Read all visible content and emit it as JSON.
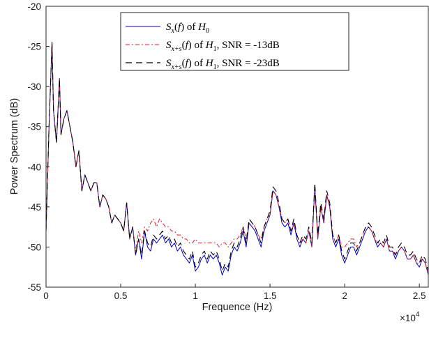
{
  "chart_data": {
    "type": "line",
    "xlabel": "Frequence (Hz)",
    "ylabel": "Power Spectrum (dB)",
    "x_exponent_label": "×10",
    "x_exponent_power": "4",
    "xlim": [
      0,
      2.56
    ],
    "ylim": [
      -55,
      -20
    ],
    "xticks": [
      0,
      0.5,
      1,
      1.5,
      2,
      2.5
    ],
    "xtick_labels": [
      "0",
      "0.5",
      "1",
      "1.5",
      "2",
      "2.5"
    ],
    "yticks": [
      -55,
      -50,
      -45,
      -40,
      -35,
      -30,
      -25,
      -20
    ],
    "ytick_labels": [
      "-55",
      "-50",
      "-45",
      "-40",
      "-35",
      "-30",
      "-25",
      "-20"
    ],
    "grid": false,
    "legend_position": "top-center",
    "series": [
      {
        "name": "S_x(f) of H_0",
        "legend_label": "Sx(f) of H0",
        "color": "#0000cc",
        "style": "solid",
        "x": [
          0,
          0.02,
          0.04,
          0.05,
          0.07,
          0.09,
          0.1,
          0.12,
          0.14,
          0.16,
          0.18,
          0.2,
          0.22,
          0.24,
          0.26,
          0.28,
          0.3,
          0.32,
          0.34,
          0.36,
          0.38,
          0.4,
          0.42,
          0.44,
          0.46,
          0.48,
          0.5,
          0.52,
          0.54,
          0.56,
          0.58,
          0.6,
          0.62,
          0.64,
          0.66,
          0.68,
          0.7,
          0.72,
          0.74,
          0.76,
          0.78,
          0.8,
          0.82,
          0.84,
          0.86,
          0.88,
          0.9,
          0.92,
          0.94,
          0.96,
          0.98,
          1.0,
          1.02,
          1.04,
          1.06,
          1.08,
          1.1,
          1.12,
          1.14,
          1.16,
          1.18,
          1.2,
          1.22,
          1.24,
          1.26,
          1.28,
          1.3,
          1.32,
          1.34,
          1.36,
          1.38,
          1.4,
          1.42,
          1.44,
          1.46,
          1.48,
          1.5,
          1.52,
          1.54,
          1.56,
          1.58,
          1.6,
          1.62,
          1.64,
          1.66,
          1.68,
          1.7,
          1.72,
          1.74,
          1.76,
          1.78,
          1.8,
          1.82,
          1.84,
          1.86,
          1.88,
          1.9,
          1.92,
          1.94,
          1.96,
          1.98,
          2.0,
          2.02,
          2.04,
          2.06,
          2.08,
          2.1,
          2.12,
          2.14,
          2.16,
          2.18,
          2.2,
          2.22,
          2.24,
          2.26,
          2.28,
          2.3,
          2.32,
          2.34,
          2.36,
          2.38,
          2.4,
          2.42,
          2.44,
          2.46,
          2.48,
          2.5,
          2.52,
          2.54,
          2.56
        ],
        "y": [
          -48,
          -35,
          -24.5,
          -33,
          -37,
          -29,
          -36,
          -34,
          -33,
          -35,
          -37,
          -40,
          -38,
          -43,
          -41,
          -42,
          -43,
          -42,
          -42,
          -45,
          -43.5,
          -44,
          -45,
          -47,
          -46,
          -46.5,
          -47,
          -48,
          -44.5,
          -49,
          -47.5,
          -51,
          -49,
          -51.5,
          -48,
          -50,
          -50.5,
          -49,
          -49.5,
          -49,
          -48.5,
          -49.5,
          -49,
          -50,
          -49.5,
          -50.5,
          -50,
          -51,
          -51.5,
          -52,
          -51,
          -53,
          -52.5,
          -51.5,
          -51,
          -52,
          -51,
          -51.5,
          -51,
          -52,
          -53.5,
          -52.5,
          -53,
          -51,
          -50,
          -50.5,
          -49.5,
          -48,
          -50,
          -47,
          -47.5,
          -48,
          -49,
          -50,
          -48,
          -47,
          -46,
          -43,
          -43.5,
          -45,
          -47,
          -47.5,
          -47,
          -48.5,
          -47,
          -49,
          -50,
          -49,
          -49.5,
          -48,
          -50,
          -42.5,
          -49,
          -45,
          -47,
          -43.5,
          -45,
          -49,
          -50,
          -49,
          -51,
          -52,
          -51,
          -50,
          -50,
          -51,
          -50,
          -49,
          -48,
          -47.5,
          -48,
          -49,
          -50,
          -49.5,
          -50,
          -49,
          -50.5,
          -50.5,
          -51.5,
          -50.5,
          -50,
          -50.5,
          -51.5,
          -51.5,
          -51,
          -52,
          -52.5,
          -51.5,
          -52,
          -53.5
        ]
      },
      {
        "name": "S_{x+s}(f) of H_1, SNR = -13dB",
        "legend_label": "Sx+s(f) of H1, SNR = -13dB",
        "color": "#e8191e",
        "style": "dashdot",
        "x": [
          0,
          0.02,
          0.04,
          0.05,
          0.07,
          0.09,
          0.1,
          0.12,
          0.14,
          0.16,
          0.18,
          0.2,
          0.22,
          0.24,
          0.26,
          0.28,
          0.3,
          0.32,
          0.34,
          0.36,
          0.38,
          0.4,
          0.42,
          0.44,
          0.46,
          0.48,
          0.5,
          0.52,
          0.54,
          0.56,
          0.58,
          0.6,
          0.62,
          0.64,
          0.66,
          0.68,
          0.7,
          0.72,
          0.74,
          0.76,
          0.78,
          0.8,
          0.82,
          0.84,
          0.86,
          0.88,
          0.9,
          0.92,
          0.94,
          0.96,
          0.98,
          1.0,
          1.02,
          1.04,
          1.06,
          1.08,
          1.1,
          1.12,
          1.14,
          1.16,
          1.18,
          1.2,
          1.22,
          1.24,
          1.26,
          1.28,
          1.3,
          1.32,
          1.34,
          1.36,
          1.38,
          1.4,
          1.42,
          1.44,
          1.46,
          1.48,
          1.5,
          1.52,
          1.54,
          1.56,
          1.58,
          1.6,
          1.62,
          1.64,
          1.66,
          1.68,
          1.7,
          1.72,
          1.74,
          1.76,
          1.78,
          1.8,
          1.82,
          1.84,
          1.86,
          1.88,
          1.9,
          1.92,
          1.94,
          1.96,
          1.98,
          2.0,
          2.02,
          2.04,
          2.06,
          2.08,
          2.1,
          2.12,
          2.14,
          2.16,
          2.18,
          2.2,
          2.22,
          2.24,
          2.26,
          2.28,
          2.3,
          2.32,
          2.34,
          2.36,
          2.38,
          2.4,
          2.42,
          2.44,
          2.46,
          2.48,
          2.5,
          2.52,
          2.54,
          2.56
        ],
        "y": [
          -48,
          -35,
          -24.5,
          -33,
          -37,
          -29,
          -36,
          -34,
          -33,
          -35,
          -37,
          -40,
          -38,
          -43,
          -41,
          -42,
          -43,
          -42,
          -42,
          -45,
          -43.5,
          -44,
          -45,
          -47,
          -46,
          -46.5,
          -47,
          -48,
          -44.5,
          -49,
          -47.5,
          -50.5,
          -48,
          -49.5,
          -47.5,
          -48,
          -47,
          -46.5,
          -47.5,
          -46.5,
          -47,
          -47.5,
          -47.5,
          -48,
          -48,
          -48.5,
          -48.5,
          -49,
          -49,
          -49.5,
          -49.5,
          -49,
          -49.5,
          -49.5,
          -49.5,
          -49.5,
          -49.5,
          -49.5,
          -49.5,
          -50,
          -49.5,
          -49.5,
          -50,
          -49.5,
          -49,
          -49,
          -48.5,
          -47.5,
          -49,
          -47,
          -47,
          -47.5,
          -48.5,
          -49,
          -47.5,
          -46.5,
          -46,
          -43,
          -43.5,
          -45,
          -46.5,
          -47,
          -46.5,
          -48,
          -47,
          -48.5,
          -49.5,
          -49,
          -49.5,
          -48,
          -50,
          -42.5,
          -49,
          -45,
          -47,
          -43.5,
          -45,
          -48.5,
          -49.5,
          -48.5,
          -50,
          -50,
          -49.5,
          -49,
          -49,
          -50,
          -49.5,
          -48.5,
          -47.5,
          -47.5,
          -48,
          -49,
          -49.5,
          -49.5,
          -50,
          -49,
          -50.5,
          -50.5,
          -51,
          -50.5,
          -50,
          -50.5,
          -51.5,
          -51.5,
          -51,
          -52,
          -52,
          -51.5,
          -52,
          -53.5
        ]
      },
      {
        "name": "S_{x+s}(f) of H_1, SNR = -23dB",
        "legend_label": "Sx+s(f) of H1, SNR = -23dB",
        "color": "#000000",
        "style": "dashed",
        "x": [
          0,
          0.02,
          0.04,
          0.05,
          0.07,
          0.09,
          0.1,
          0.12,
          0.14,
          0.16,
          0.18,
          0.2,
          0.22,
          0.24,
          0.26,
          0.28,
          0.3,
          0.32,
          0.34,
          0.36,
          0.38,
          0.4,
          0.42,
          0.44,
          0.46,
          0.48,
          0.5,
          0.52,
          0.54,
          0.56,
          0.58,
          0.6,
          0.62,
          0.64,
          0.66,
          0.68,
          0.7,
          0.72,
          0.74,
          0.76,
          0.78,
          0.8,
          0.82,
          0.84,
          0.86,
          0.88,
          0.9,
          0.92,
          0.94,
          0.96,
          0.98,
          1.0,
          1.02,
          1.04,
          1.06,
          1.08,
          1.1,
          1.12,
          1.14,
          1.16,
          1.18,
          1.2,
          1.22,
          1.24,
          1.26,
          1.28,
          1.3,
          1.32,
          1.34,
          1.36,
          1.38,
          1.4,
          1.42,
          1.44,
          1.46,
          1.48,
          1.5,
          1.52,
          1.54,
          1.56,
          1.58,
          1.6,
          1.62,
          1.64,
          1.66,
          1.68,
          1.7,
          1.72,
          1.74,
          1.76,
          1.78,
          1.8,
          1.82,
          1.84,
          1.86,
          1.88,
          1.9,
          1.92,
          1.94,
          1.96,
          1.98,
          2.0,
          2.02,
          2.04,
          2.06,
          2.08,
          2.1,
          2.12,
          2.14,
          2.16,
          2.18,
          2.2,
          2.22,
          2.24,
          2.26,
          2.28,
          2.3,
          2.32,
          2.34,
          2.36,
          2.38,
          2.4,
          2.42,
          2.44,
          2.46,
          2.48,
          2.5,
          2.52,
          2.54,
          2.56
        ],
        "y": [
          -48,
          -35,
          -24.5,
          -33,
          -37,
          -29,
          -36,
          -34,
          -33,
          -35,
          -37,
          -40,
          -38,
          -43,
          -41,
          -42,
          -43,
          -42,
          -42,
          -45,
          -43.5,
          -44,
          -45,
          -47,
          -46,
          -46.5,
          -47,
          -48,
          -44.5,
          -49,
          -47.5,
          -51,
          -49,
          -51,
          -48,
          -49.5,
          -50,
          -48.5,
          -49,
          -48.5,
          -48,
          -49,
          -48.5,
          -49.5,
          -49,
          -50,
          -49.5,
          -50.5,
          -51,
          -51.5,
          -50.5,
          -52.5,
          -52,
          -51,
          -50.5,
          -51.5,
          -50.5,
          -51,
          -50.5,
          -51.5,
          -53,
          -52,
          -52.5,
          -50.5,
          -49.5,
          -50,
          -49,
          -47.5,
          -49.5,
          -46.5,
          -47,
          -47.5,
          -48.5,
          -49.5,
          -47.5,
          -46.5,
          -45.5,
          -42.5,
          -43,
          -44.5,
          -46.5,
          -47,
          -46.5,
          -48,
          -46.5,
          -48.5,
          -49.5,
          -48.5,
          -49,
          -47.5,
          -49.5,
          -42,
          -48.5,
          -44.5,
          -46.5,
          -43,
          -44.5,
          -48.5,
          -49.5,
          -48.5,
          -50.5,
          -51.5,
          -50.5,
          -49.5,
          -49.5,
          -50.5,
          -49.5,
          -48.5,
          -47.5,
          -47,
          -47.5,
          -48.5,
          -49.5,
          -49,
          -49.5,
          -48.5,
          -50,
          -50,
          -51,
          -50,
          -49.5,
          -50,
          -51,
          -51,
          -50.5,
          -51.5,
          -52,
          -51,
          -51.5,
          -53
        ]
      }
    ]
  }
}
